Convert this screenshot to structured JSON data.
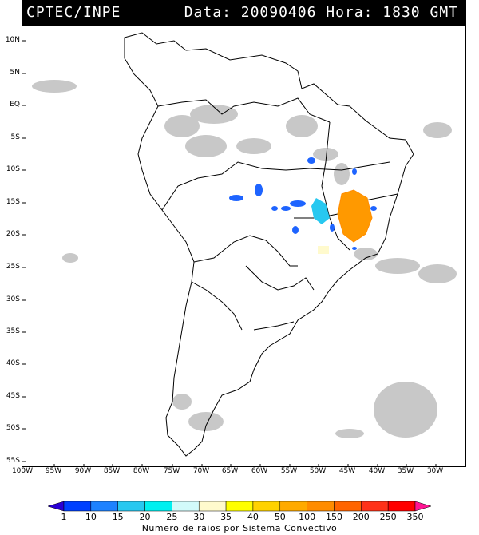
{
  "header": {
    "source": "CPTEC/INPE",
    "info": "Data: 20090406 Hora: 1830 GMT"
  },
  "map": {
    "lat_labels": [
      "10N",
      "5N",
      "EQ",
      "5S",
      "10S",
      "15S",
      "20S",
      "25S",
      "30S",
      "35S",
      "40S",
      "45S",
      "50S",
      "55S"
    ],
    "lon_labels": [
      "100W",
      "95W",
      "90W",
      "85W",
      "80W",
      "75W",
      "70W",
      "65W",
      "60W",
      "55W",
      "50W",
      "45W",
      "40W",
      "35W",
      "30W"
    ],
    "colors": {
      "cloud": "#c8c8c8",
      "coast": "#000000"
    }
  },
  "legend": {
    "values": [
      "1",
      "10",
      "15",
      "20",
      "25",
      "30",
      "35",
      "40",
      "50",
      "100",
      "150",
      "200",
      "250",
      "350"
    ],
    "colors": [
      "#2a00d4",
      "#0040ff",
      "#1e82ff",
      "#28c8f0",
      "#00f0f0",
      "#d2fafa",
      "#fffacd",
      "#ffff00",
      "#ffd200",
      "#ffaa00",
      "#ff8c00",
      "#ff6400",
      "#ff3219",
      "#ff0000",
      "#ff1493"
    ],
    "caption": "Numero de raios por Sistema Convectivo"
  }
}
